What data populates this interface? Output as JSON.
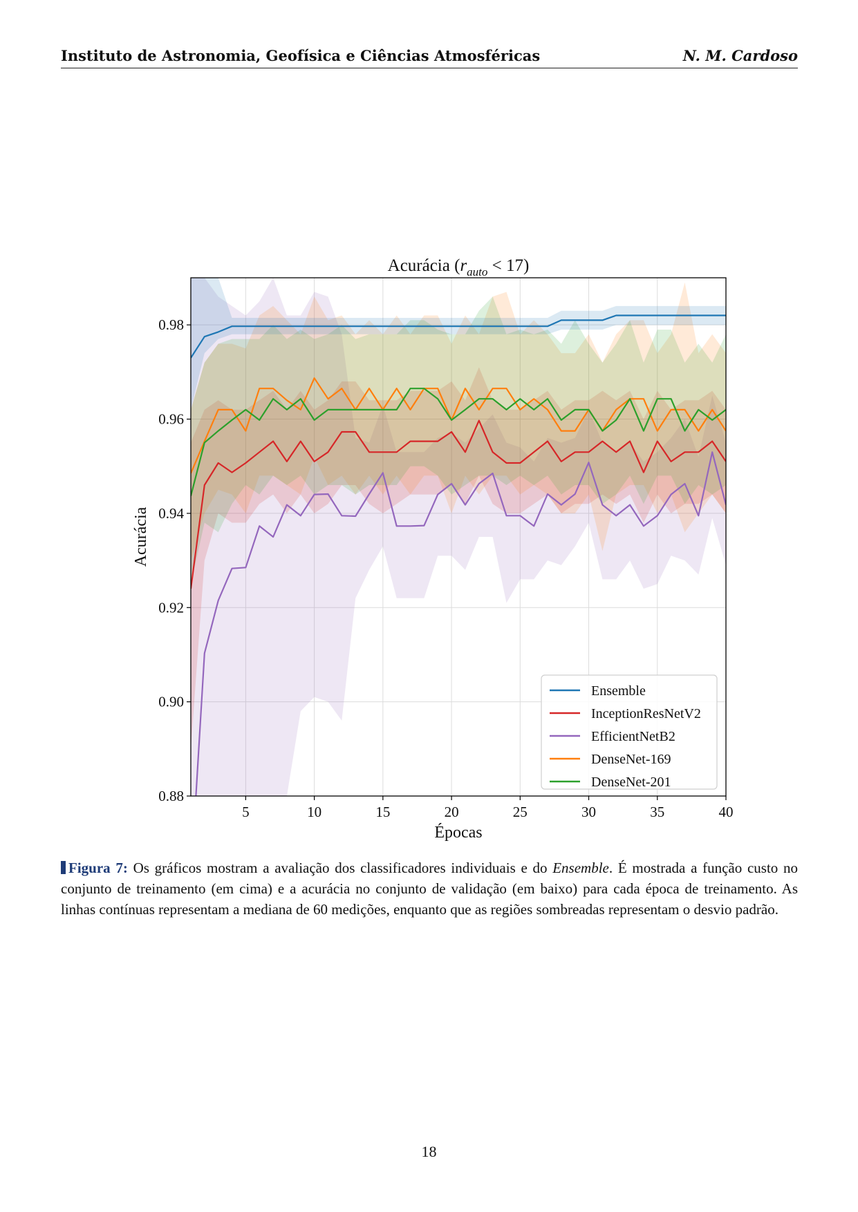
{
  "header": {
    "left": "Instituto de Astronomia, Geofísica e Ciências Atmosféricas",
    "right": "N. M. Cardoso"
  },
  "chart_data": {
    "type": "line",
    "title_prefix": "Acurácia (",
    "title_var": "r",
    "title_sub": "auto",
    "title_suffix": " < 17)",
    "xlabel": "Épocas",
    "ylabel": "Acurácia",
    "xlim": [
      1,
      40
    ],
    "ylim": [
      0.88,
      0.99
    ],
    "xticks": [
      5,
      10,
      15,
      20,
      25,
      30,
      35,
      40
    ],
    "yticks": [
      "0.88",
      "0.90",
      "0.92",
      "0.94",
      "0.96",
      "0.98"
    ],
    "yticks_values": [
      0.88,
      0.9,
      0.92,
      0.94,
      0.96,
      0.98
    ],
    "grid": true,
    "legend_position": "lower right",
    "series": [
      {
        "name": "Ensemble",
        "color": "#1f77b4",
        "values": [
          0.973,
          0.9775,
          0.9785,
          0.9797,
          0.9797,
          0.9797,
          0.9797,
          0.9797,
          0.9797,
          0.9797,
          0.9797,
          0.9797,
          0.9797,
          0.9797,
          0.9797,
          0.9797,
          0.9797,
          0.9797,
          0.9797,
          0.9797,
          0.9797,
          0.9797,
          0.9797,
          0.9797,
          0.9797,
          0.9797,
          0.9797,
          0.981,
          0.981,
          0.981,
          0.981,
          0.982,
          0.982,
          0.982,
          0.982,
          0.982,
          0.982,
          0.982,
          0.982,
          0.982
        ],
        "lower": [
          0.962,
          0.974,
          0.977,
          0.978,
          0.978,
          0.978,
          0.978,
          0.978,
          0.978,
          0.978,
          0.978,
          0.978,
          0.978,
          0.978,
          0.978,
          0.978,
          0.978,
          0.978,
          0.978,
          0.978,
          0.978,
          0.978,
          0.978,
          0.978,
          0.978,
          0.978,
          0.978,
          0.979,
          0.979,
          0.979,
          0.979,
          0.98,
          0.98,
          0.98,
          0.98,
          0.98,
          0.98,
          0.98,
          0.98,
          0.98
        ],
        "upper": [
          0.99,
          0.99,
          0.99,
          0.9815,
          0.9815,
          0.9815,
          0.9815,
          0.9815,
          0.9815,
          0.9815,
          0.9815,
          0.9815,
          0.9815,
          0.9815,
          0.9815,
          0.9815,
          0.9815,
          0.9815,
          0.9815,
          0.9815,
          0.9815,
          0.9815,
          0.9815,
          0.9815,
          0.9815,
          0.9815,
          0.9815,
          0.983,
          0.983,
          0.983,
          0.983,
          0.984,
          0.984,
          0.984,
          0.984,
          0.984,
          0.984,
          0.984,
          0.984,
          0.984
        ]
      },
      {
        "name": "InceptionResNetV2",
        "color": "#d62728",
        "values": [
          0.924,
          0.946,
          0.9507,
          0.9487,
          0.9507,
          0.953,
          0.9553,
          0.951,
          0.9553,
          0.951,
          0.953,
          0.9573,
          0.9573,
          0.953,
          0.953,
          0.953,
          0.9553,
          0.9553,
          0.9553,
          0.9573,
          0.953,
          0.9597,
          0.953,
          0.9507,
          0.9507,
          0.953,
          0.9553,
          0.951,
          0.953,
          0.953,
          0.9553,
          0.953,
          0.9553,
          0.9487,
          0.9553,
          0.951,
          0.953,
          0.953,
          0.9553,
          0.951
        ],
        "lower": [
          0.89,
          0.93,
          0.94,
          0.938,
          0.938,
          0.942,
          0.944,
          0.94,
          0.944,
          0.94,
          0.942,
          0.946,
          0.946,
          0.942,
          0.94,
          0.942,
          0.944,
          0.944,
          0.944,
          0.946,
          0.942,
          0.948,
          0.942,
          0.94,
          0.94,
          0.942,
          0.944,
          0.94,
          0.942,
          0.942,
          0.944,
          0.942,
          0.944,
          0.938,
          0.944,
          0.94,
          0.942,
          0.942,
          0.944,
          0.94
        ],
        "upper": [
          0.955,
          0.962,
          0.964,
          0.962,
          0.962,
          0.964,
          0.966,
          0.962,
          0.966,
          0.962,
          0.964,
          0.968,
          0.968,
          0.964,
          0.964,
          0.964,
          0.966,
          0.966,
          0.966,
          0.968,
          0.964,
          0.971,
          0.964,
          0.962,
          0.962,
          0.964,
          0.966,
          0.962,
          0.964,
          0.964,
          0.966,
          0.964,
          0.966,
          0.96,
          0.966,
          0.962,
          0.964,
          0.964,
          0.966,
          0.962
        ]
      },
      {
        "name": "EfficientNetB2",
        "color": "#9467bd",
        "values": [
          0.862,
          0.9103,
          0.9215,
          0.9283,
          0.9285,
          0.9373,
          0.935,
          0.9418,
          0.9395,
          0.944,
          0.9441,
          0.9395,
          0.9394,
          0.9441,
          0.9486,
          0.9373,
          0.9373,
          0.9374,
          0.944,
          0.9463,
          0.9418,
          0.9463,
          0.9485,
          0.9395,
          0.9395,
          0.9373,
          0.9441,
          0.9418,
          0.9441,
          0.9508,
          0.9418,
          0.9395,
          0.9418,
          0.9373,
          0.9395,
          0.944,
          0.9463,
          0.9395,
          0.953,
          0.9418
        ],
        "lower": [
          0.8,
          0.84,
          0.85,
          0.86,
          0.86,
          0.87,
          0.87,
          0.88,
          0.898,
          0.901,
          0.9,
          0.896,
          0.922,
          0.928,
          0.933,
          0.922,
          0.922,
          0.922,
          0.931,
          0.931,
          0.928,
          0.935,
          0.935,
          0.921,
          0.926,
          0.926,
          0.93,
          0.929,
          0.933,
          0.938,
          0.926,
          0.926,
          0.93,
          0.924,
          0.925,
          0.931,
          0.93,
          0.927,
          0.939,
          0.929
        ],
        "upper": [
          0.99,
          0.99,
          0.986,
          0.984,
          0.982,
          0.985,
          0.99,
          0.982,
          0.982,
          0.987,
          0.986,
          0.978,
          0.956,
          0.955,
          0.963,
          0.953,
          0.953,
          0.953,
          0.956,
          0.957,
          0.955,
          0.958,
          0.961,
          0.955,
          0.954,
          0.951,
          0.956,
          0.955,
          0.956,
          0.962,
          0.955,
          0.953,
          0.955,
          0.951,
          0.953,
          0.956,
          0.96,
          0.952,
          0.965,
          0.955
        ]
      },
      {
        "name": "DenseNet-169",
        "color": "#ff7f0e",
        "values": [
          0.9485,
          0.9553,
          0.962,
          0.962,
          0.9575,
          0.9665,
          0.9665,
          0.964,
          0.962,
          0.9687,
          0.9643,
          0.9665,
          0.962,
          0.9665,
          0.962,
          0.9665,
          0.962,
          0.9665,
          0.9665,
          0.9598,
          0.9665,
          0.962,
          0.9665,
          0.9665,
          0.962,
          0.9643,
          0.962,
          0.9575,
          0.9575,
          0.962,
          0.9575,
          0.962,
          0.9643,
          0.9643,
          0.9575,
          0.962,
          0.962,
          0.9575,
          0.962,
          0.9575
        ],
        "lower": [
          0.93,
          0.94,
          0.945,
          0.944,
          0.94,
          0.948,
          0.948,
          0.946,
          0.944,
          0.952,
          0.946,
          0.948,
          0.944,
          0.948,
          0.944,
          0.948,
          0.944,
          0.948,
          0.948,
          0.94,
          0.948,
          0.944,
          0.948,
          0.948,
          0.944,
          0.946,
          0.944,
          0.94,
          0.94,
          0.944,
          0.932,
          0.944,
          0.946,
          0.946,
          0.94,
          0.944,
          0.936,
          0.94,
          0.944,
          0.94
        ],
        "upper": [
          0.962,
          0.972,
          0.976,
          0.976,
          0.975,
          0.982,
          0.984,
          0.981,
          0.978,
          0.986,
          0.981,
          0.982,
          0.978,
          0.981,
          0.978,
          0.982,
          0.978,
          0.982,
          0.982,
          0.976,
          0.982,
          0.978,
          0.986,
          0.987,
          0.978,
          0.981,
          0.978,
          0.974,
          0.974,
          0.978,
          0.972,
          0.978,
          0.981,
          0.981,
          0.974,
          0.978,
          0.989,
          0.974,
          0.978,
          0.974
        ]
      },
      {
        "name": "DenseNet-201",
        "color": "#2ca02c",
        "values": [
          0.9437,
          0.955,
          0.9575,
          0.9598,
          0.962,
          0.9598,
          0.9643,
          0.962,
          0.9643,
          0.9598,
          0.962,
          0.962,
          0.962,
          0.962,
          0.962,
          0.962,
          0.9665,
          0.9665,
          0.9643,
          0.9598,
          0.962,
          0.9643,
          0.9643,
          0.962,
          0.9643,
          0.962,
          0.9643,
          0.9598,
          0.962,
          0.962,
          0.9575,
          0.9598,
          0.9643,
          0.9575,
          0.9643,
          0.9643,
          0.9575,
          0.962,
          0.9598,
          0.962
        ],
        "lower": [
          0.925,
          0.938,
          0.936,
          0.942,
          0.946,
          0.944,
          0.948,
          0.946,
          0.948,
          0.944,
          0.946,
          0.946,
          0.944,
          0.946,
          0.946,
          0.946,
          0.95,
          0.95,
          0.948,
          0.944,
          0.946,
          0.948,
          0.948,
          0.946,
          0.948,
          0.946,
          0.948,
          0.944,
          0.946,
          0.946,
          0.942,
          0.944,
          0.948,
          0.942,
          0.948,
          0.948,
          0.942,
          0.946,
          0.944,
          0.946
        ],
        "upper": [
          0.962,
          0.972,
          0.976,
          0.977,
          0.977,
          0.977,
          0.98,
          0.977,
          0.979,
          0.977,
          0.978,
          0.98,
          0.977,
          0.978,
          0.978,
          0.978,
          0.981,
          0.981,
          0.979,
          0.978,
          0.978,
          0.983,
          0.986,
          0.978,
          0.979,
          0.978,
          0.979,
          0.976,
          0.981,
          0.976,
          0.972,
          0.976,
          0.981,
          0.972,
          0.979,
          0.979,
          0.972,
          0.976,
          0.972,
          0.978
        ]
      }
    ]
  },
  "caption": {
    "label": "Figura 7:",
    "text_before": " Os gráficos mostram a avaliação dos classificadores individuais e do ",
    "emph": "Ensemble",
    "text_after": ". É mostrada a função custo no conjunto de treinamento (em cima) e a acurácia no conjunto de validação (em baixo) para cada época de treinamento. As linhas contínuas representam a mediana de 60 medições, enquanto que as regiões sombreadas representam o desvio padrão."
  },
  "page_number": "18"
}
